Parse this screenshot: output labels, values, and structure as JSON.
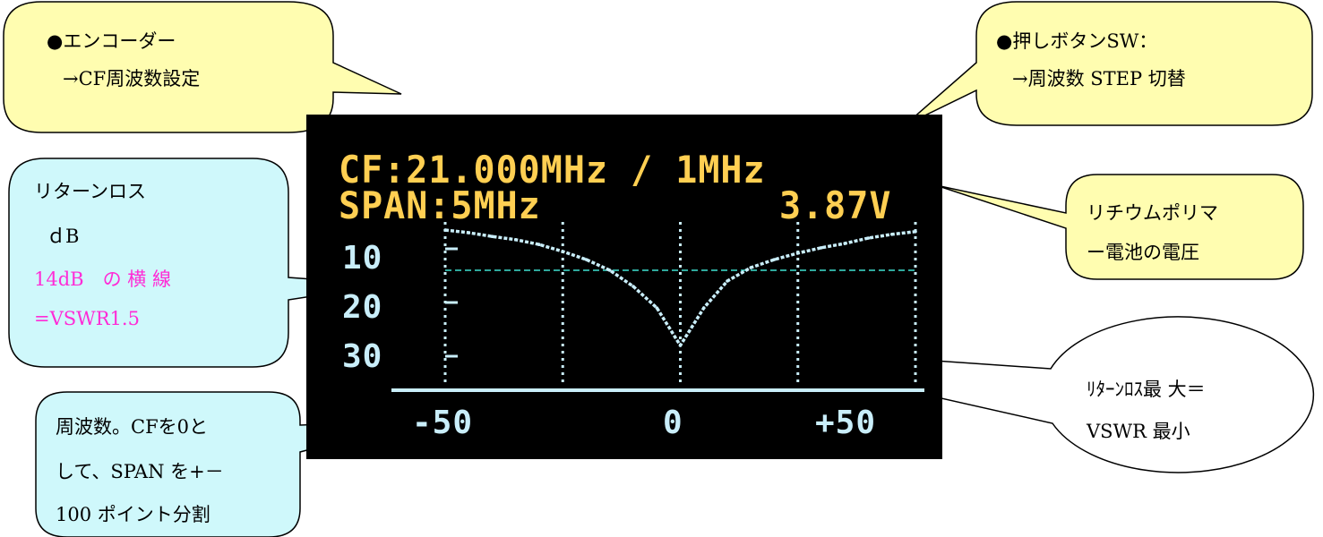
{
  "lcd": {
    "cf_line": "CF:21.000MHz / 1MHz",
    "span_line": "SPAN:5MHz",
    "voltage": "3.87V",
    "y_ticks": [
      "10",
      "20",
      "30"
    ],
    "x_ticks": [
      "-50",
      "0",
      "+50"
    ]
  },
  "callouts": {
    "encoder": {
      "line1": "●エンコーダー",
      "line2": "→CF周波数設定"
    },
    "button": {
      "line1": "●押しボタンSW：",
      "line2": "→周波数 STEP 切替"
    },
    "return_loss": {
      "line1": "リターンロス",
      "line2": "ｄB",
      "line3": "14dB　の 横 線",
      "line4": "=VSWR1.5"
    },
    "battery": {
      "line1": "リチウムポリマ",
      "line2": "ー電池の電圧"
    },
    "frequency": {
      "line1": "周波数。CFを0と",
      "line2": "して、SPAN を+－",
      "line3": "100 ポイント分割"
    },
    "min_vswr": {
      "line1": "ﾘﾀｰﾝﾛｽ最 大＝",
      "line2": "VSWR 最小"
    }
  },
  "chart_data": {
    "type": "line",
    "title": "",
    "x_ticks": [
      -50,
      0,
      50
    ],
    "y_ticks": [
      10,
      20,
      30
    ],
    "xlim": [
      -50,
      50
    ],
    "ylim": [
      5,
      35
    ],
    "y_inverted": true,
    "reference_line_y": 14,
    "series": [
      {
        "x": [
          -50,
          -45,
          -40,
          -35,
          -30,
          -25,
          -20,
          -15,
          -10,
          -5,
          0,
          5,
          10,
          15,
          20,
          25,
          30,
          35,
          40,
          45,
          50
        ],
        "y": [
          6.5,
          7.0,
          7.7,
          8.3,
          9.2,
          10.5,
          12.0,
          14.0,
          17.0,
          21.0,
          28.0,
          21.0,
          16.0,
          13.5,
          12.0,
          10.8,
          9.8,
          9.0,
          8.0,
          7.3,
          6.8
        ]
      }
    ],
    "colors": {
      "trace": "#c9eefa",
      "reference_line": "#3fe0d0",
      "labels": "#ffcf52"
    }
  }
}
